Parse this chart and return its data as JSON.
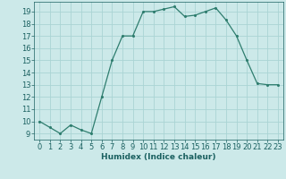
{
  "x": [
    0,
    1,
    2,
    3,
    4,
    5,
    6,
    7,
    8,
    9,
    10,
    11,
    12,
    13,
    14,
    15,
    16,
    17,
    18,
    19,
    20,
    21,
    22,
    23
  ],
  "y": [
    10,
    9.5,
    9,
    9.7,
    9.3,
    9,
    12,
    15,
    17,
    17,
    19,
    19,
    19.2,
    19.4,
    18.6,
    18.7,
    19,
    19.3,
    18.3,
    17,
    15,
    13.1,
    13,
    13
  ],
  "line_color": "#2e7d6e",
  "marker": "o",
  "marker_size": 2.2,
  "bg_color": "#cce9e9",
  "grid_color": "#aad4d4",
  "xlabel": "Humidex (Indice chaleur)",
  "xlim": [
    -0.5,
    23.5
  ],
  "ylim": [
    8.5,
    19.8
  ],
  "yticks": [
    9,
    10,
    11,
    12,
    13,
    14,
    15,
    16,
    17,
    18,
    19
  ],
  "xticks": [
    0,
    1,
    2,
    3,
    4,
    5,
    6,
    7,
    8,
    9,
    10,
    11,
    12,
    13,
    14,
    15,
    16,
    17,
    18,
    19,
    20,
    21,
    22,
    23
  ],
  "tick_color": "#1a6060",
  "xlabel_fontsize": 6.5,
  "tick_fontsize": 6.0,
  "linewidth": 0.9
}
